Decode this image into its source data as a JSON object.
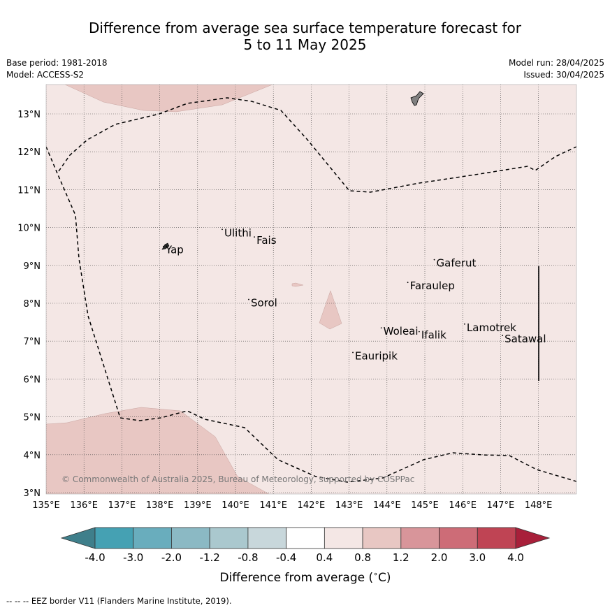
{
  "title": {
    "line1": "Difference from average sea surface temperature forecast for",
    "line2": "5 to 11 May 2025"
  },
  "meta": {
    "base_period": "Base period: 1981-2018",
    "model": "Model: ACCESS-S2",
    "model_run": "Model run: 28/04/2025",
    "issued": "Issued: 30/04/2025"
  },
  "map": {
    "lon_range": [
      135,
      149
    ],
    "lat_range": [
      3,
      13.8
    ],
    "lon_ticks": [
      {
        "value": 135,
        "label": "135°E"
      },
      {
        "value": 136,
        "label": "136°E"
      },
      {
        "value": 137,
        "label": "137°E"
      },
      {
        "value": 138,
        "label": "138°E"
      },
      {
        "value": 139,
        "label": "139°E"
      },
      {
        "value": 140,
        "label": "140°E"
      },
      {
        "value": 141,
        "label": "141°E"
      },
      {
        "value": 142,
        "label": "142°E"
      },
      {
        "value": 143,
        "label": "143°E"
      },
      {
        "value": 144,
        "label": "144°E"
      },
      {
        "value": 145,
        "label": "145°E"
      },
      {
        "value": 146,
        "label": "146°E"
      },
      {
        "value": 147,
        "label": "147°E"
      },
      {
        "value": 148,
        "label": "148°E"
      }
    ],
    "lat_ticks": [
      {
        "value": 3,
        "label": "3°N"
      },
      {
        "value": 4,
        "label": "4°N"
      },
      {
        "value": 5,
        "label": "5°N"
      },
      {
        "value": 6,
        "label": "6°N"
      },
      {
        "value": 7,
        "label": "7°N"
      },
      {
        "value": 8,
        "label": "8°N"
      },
      {
        "value": 9,
        "label": "9°N"
      },
      {
        "value": 10,
        "label": "10°N"
      },
      {
        "value": 11,
        "label": "11°N"
      },
      {
        "value": 12,
        "label": "12°N"
      },
      {
        "value": 13,
        "label": "13°N"
      }
    ],
    "background_color": "#f4e7e5",
    "warm_patch_color": "#e8c7c3",
    "places": [
      {
        "name": "Yap",
        "lon": 138.1,
        "lat": 9.5
      },
      {
        "name": "Ulithi",
        "lon": 139.65,
        "lat": 9.95
      },
      {
        "name": "Fais",
        "lon": 140.5,
        "lat": 9.75
      },
      {
        "name": "Gaferut",
        "lon": 145.25,
        "lat": 9.15
      },
      {
        "name": "Faraulep",
        "lon": 144.55,
        "lat": 8.55
      },
      {
        "name": "Sorol",
        "lon": 140.35,
        "lat": 8.1
      },
      {
        "name": "Woleai",
        "lon": 143.85,
        "lat": 7.35
      },
      {
        "name": "Ifalik",
        "lon": 144.85,
        "lat": 7.25
      },
      {
        "name": "Lamotrek",
        "lon": 146.05,
        "lat": 7.45
      },
      {
        "name": "Satawal",
        "lon": 147.05,
        "lat": 7.15
      },
      {
        "name": "Eauripik",
        "lon": 143.1,
        "lat": 6.7
      }
    ],
    "copyright": "© Commonwealth of Australia 2025, Bureau of Meteorology, supported by COSPPac"
  },
  "colorbar": {
    "label": "Difference from average (°C)",
    "boundaries": [
      "-4.0",
      "-3.0",
      "-2.0",
      "-1.2",
      "-0.8",
      "-0.4",
      "0.4",
      "0.8",
      "1.2",
      "2.0",
      "3.0",
      "4.0"
    ],
    "colors": [
      "#45a1b3",
      "#69adbd",
      "#8bb9c4",
      "#aac8ce",
      "#c8d7db",
      "#ffffff",
      "#f4e7e5",
      "#e8c7c3",
      "#d8959a",
      "#cd6c77",
      "#bf4454"
    ],
    "extend_low_color": "#3f7f8b",
    "extend_high_color": "#a8203a"
  },
  "footer": "--  --  -- EEZ border V11 (Flanders Marine Institute, 2019)."
}
